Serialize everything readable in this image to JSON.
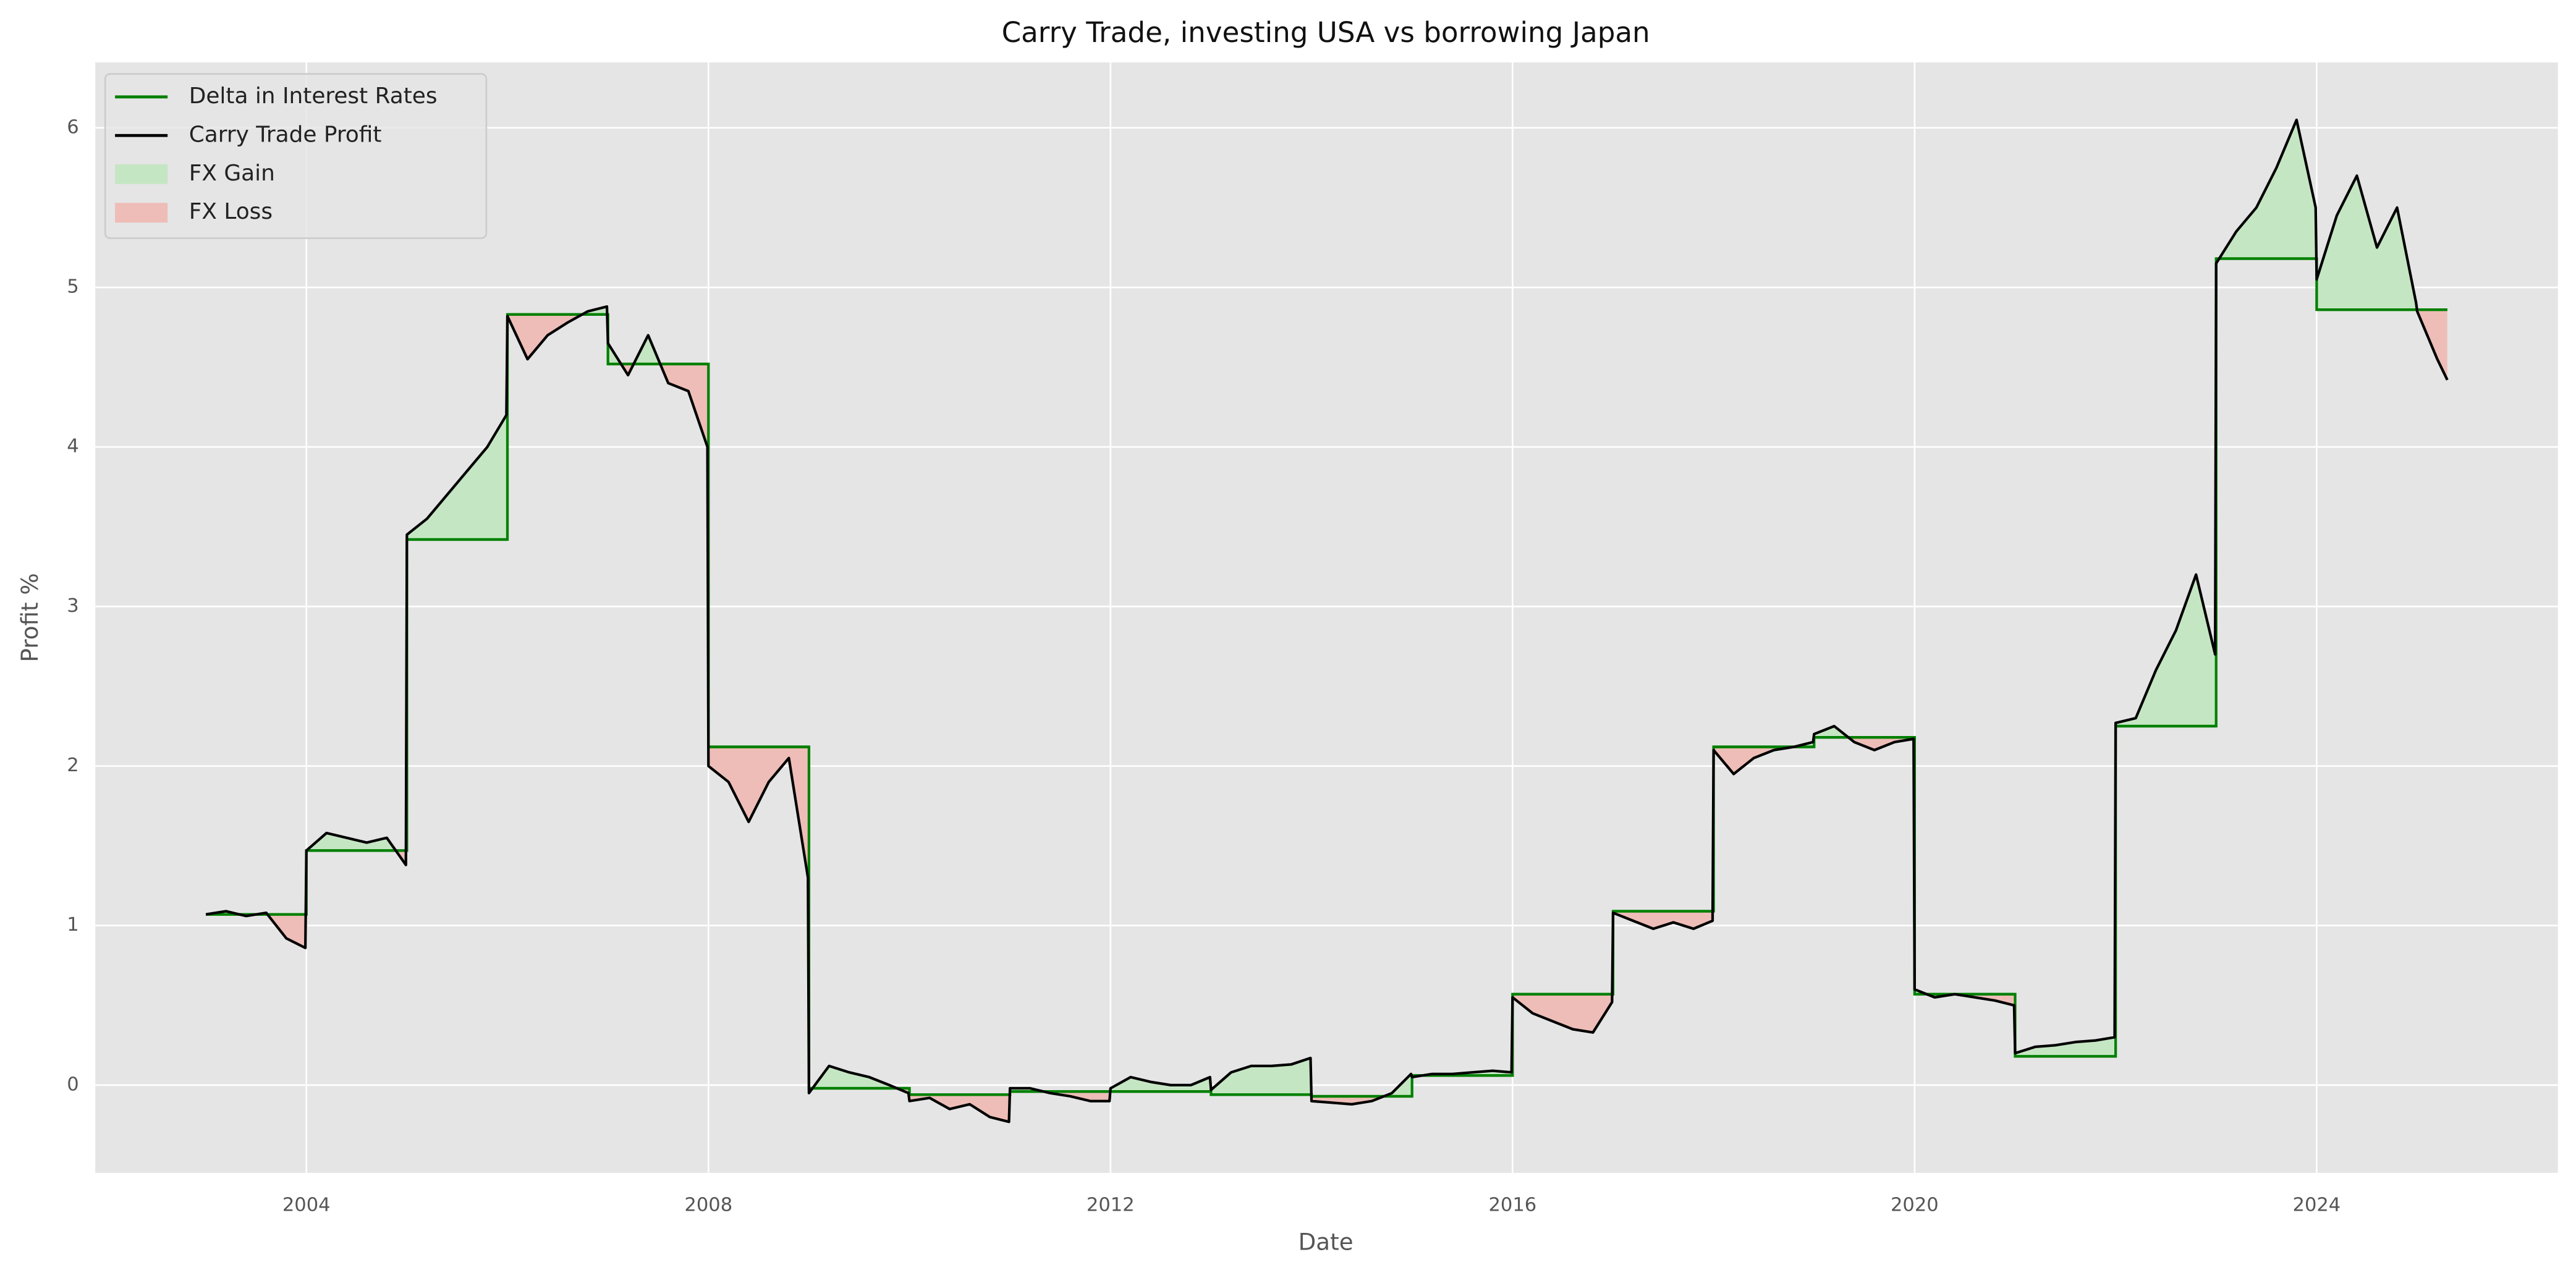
{
  "chart_data": {
    "type": "line",
    "title": "Carry Trade, investing USA vs borrowing Japan",
    "x_label": "Date",
    "y_label": "Profit %",
    "xlim": [
      2001.9,
      2026.4
    ],
    "ylim": [
      -0.55,
      6.41
    ],
    "xticks": [
      2004,
      2008,
      2012,
      2016,
      2020,
      2024
    ],
    "yticks": [
      0,
      1,
      2,
      3,
      4,
      5,
      6
    ],
    "grid": true,
    "legend": "upper left",
    "series": [
      {
        "name": "Delta in Interest Rates",
        "color": "#008000",
        "drawstyle": "steps-post",
        "x": [
          2003,
          2004,
          2005,
          2006,
          2007,
          2008,
          2009,
          2010,
          2011,
          2012,
          2013,
          2014,
          2015,
          2016,
          2017,
          2018,
          2019,
          2020,
          2021,
          2022,
          2023,
          2024,
          2025
        ],
        "values": [
          1.07,
          1.47,
          3.42,
          4.83,
          4.52,
          2.12,
          -0.02,
          -0.06,
          -0.04,
          -0.04,
          -0.06,
          -0.07,
          0.06,
          0.57,
          1.09,
          2.12,
          2.18,
          0.57,
          0.18,
          2.25,
          5.18,
          4.86,
          4.86
        ]
      },
      {
        "name": "Carry Trade Profit",
        "color": "#000000",
        "x": [
          2003,
          2003.2,
          2003.4,
          2003.6,
          2003.8,
          2003.99,
          2004,
          2004.2,
          2004.4,
          2004.6,
          2004.8,
          2004.99,
          2005,
          2005.2,
          2005.4,
          2005.6,
          2005.8,
          2005.99,
          2006,
          2006.2,
          2006.4,
          2006.6,
          2006.8,
          2006.99,
          2007,
          2007.2,
          2007.4,
          2007.6,
          2007.8,
          2007.99,
          2008,
          2008.2,
          2008.4,
          2008.6,
          2008.8,
          2008.99,
          2009,
          2009.2,
          2009.4,
          2009.6,
          2009.8,
          2009.99,
          2010,
          2010.2,
          2010.4,
          2010.6,
          2010.8,
          2010.99,
          2011,
          2011.2,
          2011.4,
          2011.6,
          2011.8,
          2011.99,
          2012,
          2012.2,
          2012.4,
          2012.6,
          2012.8,
          2012.99,
          2013,
          2013.2,
          2013.4,
          2013.6,
          2013.8,
          2013.99,
          2014,
          2014.2,
          2014.4,
          2014.6,
          2014.8,
          2014.99,
          2015,
          2015.2,
          2015.4,
          2015.6,
          2015.8,
          2015.99,
          2016,
          2016.2,
          2016.4,
          2016.6,
          2016.8,
          2016.99,
          2017,
          2017.2,
          2017.4,
          2017.6,
          2017.8,
          2017.99,
          2018,
          2018.2,
          2018.4,
          2018.6,
          2018.8,
          2018.99,
          2019,
          2019.2,
          2019.4,
          2019.6,
          2019.8,
          2019.99,
          2020,
          2020.2,
          2020.4,
          2020.6,
          2020.8,
          2020.99,
          2021,
          2021.2,
          2021.4,
          2021.6,
          2021.8,
          2021.99,
          2022,
          2022.2,
          2022.4,
          2022.6,
          2022.8,
          2022.99,
          2023,
          2023.2,
          2023.4,
          2023.6,
          2023.8,
          2023.99,
          2024,
          2024.2,
          2024.4,
          2024.6,
          2024.8,
          2024.99,
          2025,
          2025.1,
          2025.2,
          2025.3
        ],
        "values": [
          1.07,
          1.09,
          1.06,
          1.08,
          0.92,
          0.86,
          1.47,
          1.58,
          1.55,
          1.52,
          1.55,
          1.38,
          3.45,
          3.55,
          3.7,
          3.85,
          4.0,
          4.2,
          4.82,
          4.55,
          4.7,
          4.78,
          4.85,
          4.88,
          4.65,
          4.45,
          4.7,
          4.4,
          4.35,
          4.0,
          2.0,
          1.9,
          1.65,
          1.9,
          2.05,
          1.3,
          -0.05,
          0.12,
          0.08,
          0.05,
          0.0,
          -0.05,
          -0.1,
          -0.08,
          -0.15,
          -0.12,
          -0.2,
          -0.23,
          -0.02,
          -0.02,
          -0.05,
          -0.07,
          -0.1,
          -0.1,
          -0.02,
          0.05,
          0.02,
          0.0,
          0.0,
          0.05,
          -0.03,
          0.08,
          0.12,
          0.12,
          0.13,
          0.17,
          -0.1,
          -0.11,
          -0.12,
          -0.1,
          -0.05,
          0.07,
          0.05,
          0.07,
          0.07,
          0.08,
          0.09,
          0.08,
          0.55,
          0.45,
          0.4,
          0.35,
          0.33,
          0.52,
          1.08,
          1.03,
          0.98,
          1.02,
          0.98,
          1.03,
          2.1,
          1.95,
          2.05,
          2.1,
          2.12,
          2.15,
          2.2,
          2.25,
          2.15,
          2.1,
          2.15,
          2.17,
          0.6,
          0.55,
          0.57,
          0.55,
          0.53,
          0.5,
          0.2,
          0.24,
          0.25,
          0.27,
          0.28,
          0.3,
          2.27,
          2.3,
          2.6,
          2.85,
          3.2,
          2.7,
          5.15,
          5.35,
          5.5,
          5.75,
          6.05,
          5.5,
          5.05,
          5.45,
          5.7,
          5.25,
          5.5,
          4.9,
          4.85,
          4.7,
          4.55,
          4.42
        ]
      }
    ],
    "fills": [
      {
        "name": "FX Gain",
        "color": "#c5e6c3",
        "where": "above"
      },
      {
        "name": "FX Loss",
        "color": "#eebdb7",
        "where": "below"
      }
    ]
  }
}
